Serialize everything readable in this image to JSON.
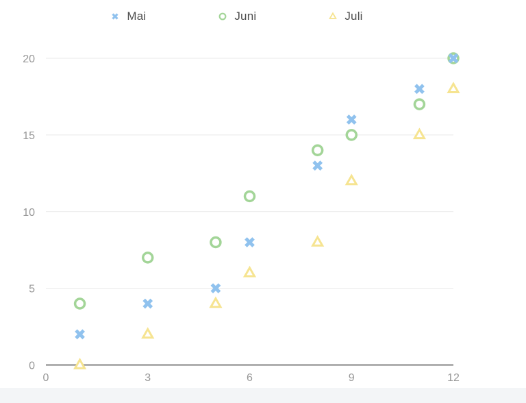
{
  "chart_data": {
    "type": "scatter",
    "title": "",
    "xlabel": "",
    "ylabel": "",
    "xlim": [
      0,
      12
    ],
    "ylim": [
      0,
      20
    ],
    "x_ticks": [
      "0",
      "3",
      "6",
      "9",
      "12"
    ],
    "x_tick_values": [
      0,
      3,
      6,
      9,
      12
    ],
    "y_ticks": [
      "0",
      "5",
      "10",
      "15",
      "20"
    ],
    "y_tick_values": [
      0,
      5,
      10,
      15,
      20
    ],
    "grid": true,
    "legend_position": "top",
    "series": [
      {
        "name": "Mai",
        "marker": "cross-rot",
        "color": "#90c2ee",
        "points": [
          [
            1,
            2
          ],
          [
            3,
            4
          ],
          [
            5,
            5
          ],
          [
            6,
            8
          ],
          [
            8,
            13
          ],
          [
            9,
            16
          ],
          [
            11,
            18
          ],
          [
            12,
            20
          ]
        ]
      },
      {
        "name": "Juni",
        "marker": "circle",
        "color": "#a3d598",
        "points": [
          [
            1,
            4
          ],
          [
            3,
            7
          ],
          [
            5,
            8
          ],
          [
            6,
            11
          ],
          [
            8,
            14
          ],
          [
            9,
            15
          ],
          [
            11,
            17
          ],
          [
            12,
            20
          ]
        ]
      },
      {
        "name": "Juli",
        "marker": "triangle",
        "color": "#f6e491",
        "points": [
          [
            1,
            0
          ],
          [
            3,
            2
          ],
          [
            5,
            4
          ],
          [
            6,
            6
          ],
          [
            8,
            8
          ],
          [
            9,
            12
          ],
          [
            11,
            15
          ],
          [
            12,
            18
          ]
        ]
      }
    ]
  },
  "colors": {
    "axis_line": "#9e9e9e",
    "grid_line": "#e9e9e9",
    "tick_label": "#979797",
    "legend_text": "#4e4e4e",
    "marker_fill": "#ffffff",
    "page_strip": "#f3f5f7",
    "background": "#ffffff"
  }
}
